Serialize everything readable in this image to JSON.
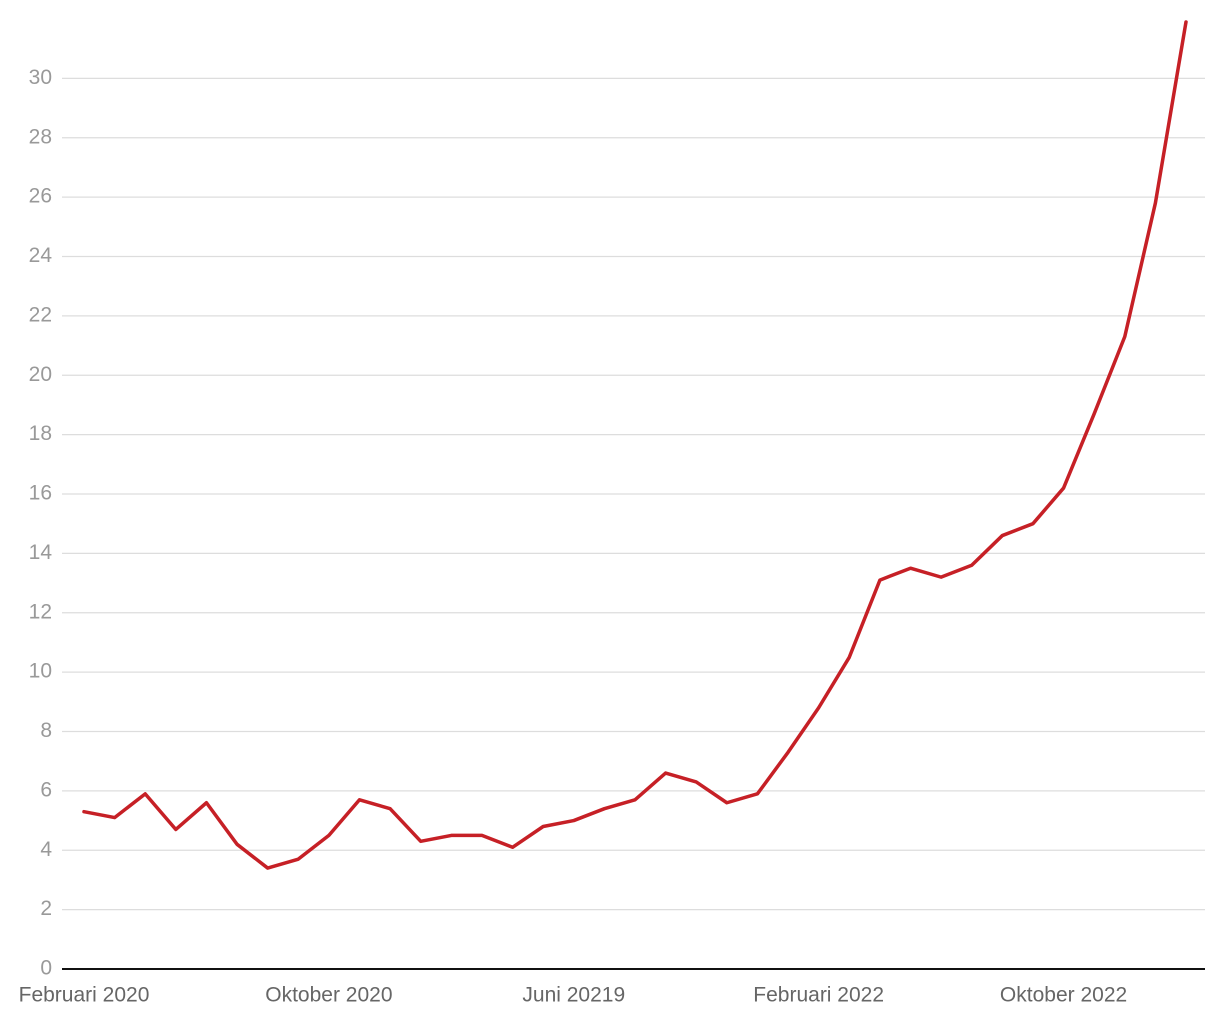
{
  "chart_data": {
    "type": "line",
    "categories": [
      "Februari 2020",
      null,
      null,
      null,
      null,
      null,
      null,
      null,
      "Oktober 2020",
      null,
      null,
      null,
      null,
      null,
      null,
      null,
      "Juni 20219",
      null,
      null,
      null,
      null,
      null,
      null,
      null,
      "Februari 2022",
      null,
      null,
      null,
      null,
      null,
      null,
      null,
      "Oktober 2022",
      null,
      null,
      null,
      null
    ],
    "values": [
      5.3,
      5.1,
      5.9,
      4.7,
      5.6,
      4.2,
      3.4,
      3.7,
      4.5,
      5.7,
      5.4,
      4.3,
      4.5,
      4.5,
      4.1,
      4.8,
      5.0,
      5.4,
      5.7,
      6.6,
      6.3,
      5.6,
      5.9,
      7.3,
      8.8,
      10.5,
      13.1,
      13.5,
      13.2,
      13.6,
      14.6,
      15.0,
      16.2,
      18.7,
      21.3,
      25.8,
      31.9
    ],
    "color": "#c62026",
    "ylim": [
      0,
      32
    ],
    "yticks": [
      0,
      2,
      4,
      6,
      8,
      10,
      12,
      14,
      16,
      18,
      20,
      22,
      24,
      26,
      28,
      30
    ],
    "grid": true
  }
}
